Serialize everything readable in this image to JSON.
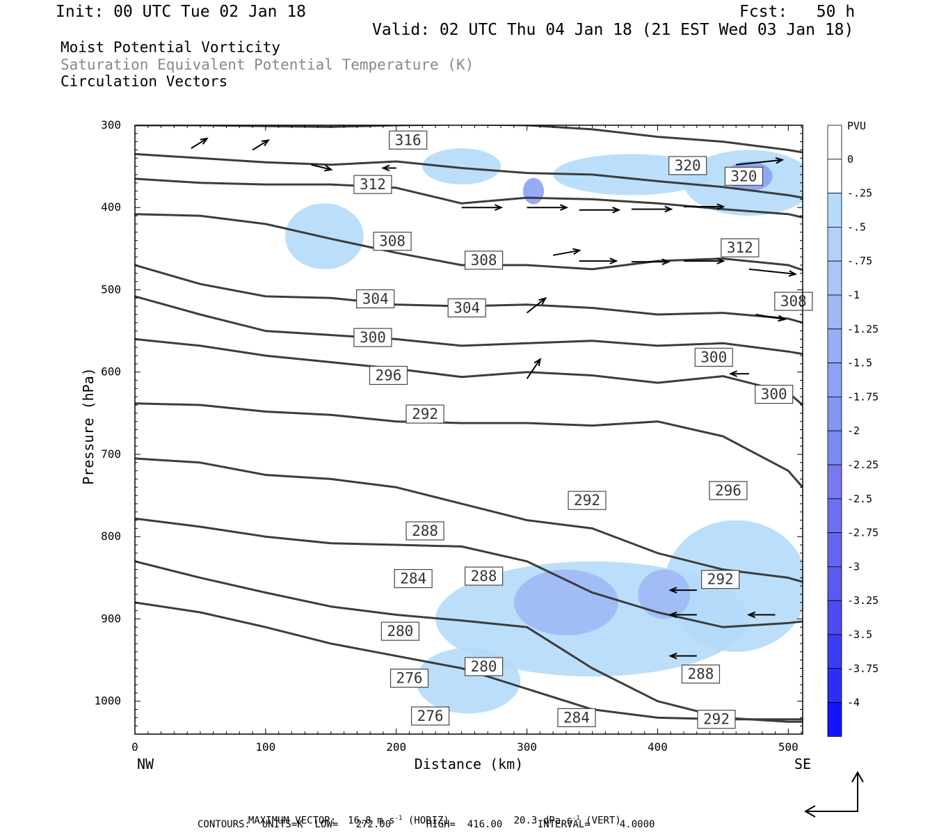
{
  "header": {
    "init": "Init: 00 UTC Tue 02 Jan 18",
    "fcst": "Fcst:   50 h",
    "valid": "Valid: 02 UTC Thu 04 Jan 18 (21 EST Wed 03 Jan 18)",
    "field1": "Moist Potential Vorticity",
    "field2": "Saturation Equivalent Potential Temperature (K)",
    "field3": "Circulation Vectors"
  },
  "footer": {
    "max_vector_a": "MAXIMUM VECTOR:  16.8 m s",
    "max_vector_b": "(HORIZ)",
    "max_vector_c": "20.3 dPa s",
    "max_vector_d": "(VERT)",
    "exp": "-1",
    "contours": "CONTOURS:  UNITS=K  LOW=   272.00      HIGH=  416.00      INTERVAL=     4.0000"
  },
  "colors": {
    "contour": "#3c3c3c",
    "shade_light": "#b4dcfa",
    "shade_mid": "#a0b9f5",
    "shade_dark": "#7878f0"
  },
  "chart_data": {
    "type": "cross-section",
    "xlabel": "Distance (km)",
    "ylabel": "Pressure (hPa)",
    "x_ticks": [
      0,
      100,
      200,
      300,
      400,
      500
    ],
    "y_ticks": [
      300,
      400,
      500,
      600,
      700,
      800,
      900,
      1000
    ],
    "xlim": [
      0,
      511
    ],
    "ylim": [
      1040,
      300
    ],
    "x_end_labels": {
      "left": "NW",
      "right": "SE"
    },
    "colorbar": {
      "unit": "PVU",
      "labels": [
        "0",
        "-.25",
        "-.5",
        "-.75",
        "-1",
        "-1.25",
        "-1.5",
        "-1.75",
        "-2",
        "-2.25",
        "-2.5",
        "-2.75",
        "-3",
        "-3.25",
        "-3.5",
        "-3.75",
        "-4"
      ],
      "colors": [
        "#ffffff",
        "#b4dcfa",
        "#b4cff8",
        "#aac6f6",
        "#a0b9f5",
        "#96aef4",
        "#8ca2f3",
        "#8296f2",
        "#7d8af1",
        "#7878f0",
        "#6e6ef0",
        "#6464f0",
        "#5a5af0",
        "#4b4bf2",
        "#3c3cf4",
        "#2d2df6",
        "#1414f8"
      ]
    },
    "theta_labels": [
      {
        "text": "316",
        "x": 209,
        "p": 318
      },
      {
        "text": "312",
        "x": 182,
        "p": 372
      },
      {
        "text": "308",
        "x": 197,
        "p": 441
      },
      {
        "text": "308",
        "x": 267,
        "p": 464
      },
      {
        "text": "304",
        "x": 184,
        "p": 511
      },
      {
        "text": "304",
        "x": 254,
        "p": 522
      },
      {
        "text": "300",
        "x": 182,
        "p": 558
      },
      {
        "text": "296",
        "x": 194,
        "p": 604
      },
      {
        "text": "292",
        "x": 222,
        "p": 651
      },
      {
        "text": "320",
        "x": 423,
        "p": 349
      },
      {
        "text": "320",
        "x": 466,
        "p": 362
      },
      {
        "text": "312",
        "x": 463,
        "p": 449
      },
      {
        "text": "308",
        "x": 504,
        "p": 514
      },
      {
        "text": "300",
        "x": 443,
        "p": 582
      },
      {
        "text": "300",
        "x": 489,
        "p": 627
      },
      {
        "text": "296",
        "x": 454,
        "p": 744
      },
      {
        "text": "292",
        "x": 346,
        "p": 756
      },
      {
        "text": "288",
        "x": 222,
        "p": 793
      },
      {
        "text": "288",
        "x": 267,
        "p": 848
      },
      {
        "text": "284",
        "x": 213,
        "p": 851
      },
      {
        "text": "292",
        "x": 448,
        "p": 852
      },
      {
        "text": "280",
        "x": 203,
        "p": 915
      },
      {
        "text": "280",
        "x": 267,
        "p": 958
      },
      {
        "text": "288",
        "x": 433,
        "p": 967
      },
      {
        "text": "276",
        "x": 210,
        "p": 972
      },
      {
        "text": "276",
        "x": 226,
        "p": 1018
      },
      {
        "text": "284",
        "x": 338,
        "p": 1020
      },
      {
        "text": "292",
        "x": 445,
        "p": 1022
      }
    ],
    "theta_lines": [
      {
        "x": [
          0,
          50,
          100,
          150,
          200,
          250,
          300,
          350,
          400,
          450,
          500,
          511
        ],
        "p": [
          300,
          300,
          301,
          302,
          300,
          299,
          300,
          305,
          314,
          320,
          330,
          333
        ]
      },
      {
        "x": [
          0,
          50,
          100,
          150,
          200,
          250,
          300,
          350,
          400,
          450,
          500,
          511
        ],
        "p": [
          335,
          340,
          345,
          348,
          344,
          352,
          358,
          360,
          368,
          375,
          385,
          388
        ]
      },
      {
        "x": [
          0,
          50,
          100,
          150,
          200,
          250,
          300,
          350,
          400,
          450,
          500,
          511
        ],
        "p": [
          365,
          370,
          372,
          372,
          376,
          395,
          388,
          390,
          395,
          402,
          408,
          412
        ]
      },
      {
        "x": [
          0,
          50,
          100,
          150,
          200,
          250,
          300,
          350,
          400,
          450,
          500,
          511
        ],
        "p": [
          408,
          410,
          420,
          438,
          455,
          470,
          470,
          475,
          465,
          462,
          470,
          476
        ]
      },
      {
        "x": [
          0,
          50,
          100,
          150,
          200,
          250,
          300,
          350,
          400,
          450,
          500,
          511
        ],
        "p": [
          470,
          493,
          508,
          510,
          518,
          520,
          518,
          522,
          530,
          528,
          535,
          540
        ]
      },
      {
        "x": [
          0,
          50,
          100,
          150,
          200,
          250,
          300,
          350,
          400,
          450,
          500,
          511
        ],
        "p": [
          508,
          530,
          550,
          555,
          560,
          568,
          565,
          562,
          568,
          565,
          575,
          578
        ]
      },
      {
        "x": [
          0,
          50,
          100,
          150,
          200,
          250,
          300,
          350,
          400,
          450,
          500,
          511
        ],
        "p": [
          560,
          568,
          580,
          588,
          596,
          606,
          600,
          604,
          613,
          605,
          625,
          640
        ]
      },
      {
        "x": [
          0,
          50,
          100,
          150,
          200,
          250,
          300,
          350,
          400,
          450,
          500,
          511
        ],
        "p": [
          638,
          640,
          648,
          652,
          660,
          662,
          662,
          665,
          660,
          678,
          720,
          740
        ]
      },
      {
        "x": [
          0,
          50,
          100,
          150,
          200,
          250,
          300,
          350,
          400,
          450,
          500,
          511
        ],
        "p": [
          705,
          710,
          725,
          730,
          740,
          760,
          780,
          790,
          820,
          840,
          850,
          855
        ]
      },
      {
        "x": [
          0,
          50,
          100,
          150,
          200,
          250,
          300,
          350,
          400,
          450,
          500,
          511
        ],
        "p": [
          778,
          788,
          800,
          808,
          810,
          812,
          830,
          868,
          892,
          910,
          905,
          903
        ]
      },
      {
        "x": [
          0,
          50,
          100,
          150,
          200,
          250,
          300,
          350,
          400,
          450,
          500,
          511
        ],
        "p": [
          830,
          850,
          868,
          885,
          895,
          902,
          910,
          960,
          1000,
          1020,
          1025,
          1025
        ]
      },
      {
        "x": [
          0,
          50,
          100,
          150,
          200,
          250,
          300,
          350,
          400,
          450,
          500,
          511
        ],
        "p": [
          880,
          892,
          910,
          930,
          945,
          960,
          985,
          1010,
          1020,
          1022,
          1022,
          1022
        ]
      }
    ],
    "vectors": [
      {
        "x": 43,
        "p": 328,
        "u": 12,
        "w": 2
      },
      {
        "x": 90,
        "p": 330,
        "u": 12,
        "w": 2
      },
      {
        "x": 135,
        "p": 348,
        "u": 15,
        "w": -1
      },
      {
        "x": 200,
        "p": 352,
        "u": -10,
        "w": 0
      },
      {
        "x": 250,
        "p": 400,
        "u": 30,
        "w": 0
      },
      {
        "x": 300,
        "p": 400,
        "u": 30,
        "w": 0
      },
      {
        "x": 340,
        "p": 403,
        "u": 30,
        "w": 0
      },
      {
        "x": 380,
        "p": 402,
        "u": 30,
        "w": 0
      },
      {
        "x": 420,
        "p": 399,
        "u": 30,
        "w": 0
      },
      {
        "x": 320,
        "p": 458,
        "u": 20,
        "w": 1
      },
      {
        "x": 340,
        "p": 465,
        "u": 28,
        "w": 0
      },
      {
        "x": 380,
        "p": 466,
        "u": 28,
        "w": 0
      },
      {
        "x": 420,
        "p": 465,
        "u": 30,
        "w": 0
      },
      {
        "x": 470,
        "p": 475,
        "u": 35,
        "w": -1
      },
      {
        "x": 475,
        "p": 530,
        "u": 22,
        "w": -1
      },
      {
        "x": 460,
        "p": 348,
        "u": 35,
        "w": 1
      },
      {
        "x": 300,
        "p": 528,
        "u": 14,
        "w": 3
      },
      {
        "x": 300,
        "p": 608,
        "u": 10,
        "w": 4
      },
      {
        "x": 470,
        "p": 602,
        "u": -14,
        "w": 0
      },
      {
        "x": 430,
        "p": 865,
        "u": -20,
        "w": 0
      },
      {
        "x": 430,
        "p": 895,
        "u": -20,
        "w": 0
      },
      {
        "x": 430,
        "p": 945,
        "u": -20,
        "w": 0
      },
      {
        "x": 490,
        "p": 895,
        "u": -20,
        "w": 0
      }
    ],
    "pv_regions": [
      {
        "level": 1,
        "cx": 350,
        "cp": 900,
        "rx": 120,
        "rp": 70
      },
      {
        "level": 1,
        "cx": 460,
        "cp": 860,
        "rx": 55,
        "rp": 80
      },
      {
        "level": 1,
        "cx": 470,
        "cp": 370,
        "rx": 50,
        "rp": 40
      },
      {
        "level": 1,
        "cx": 380,
        "cp": 360,
        "rx": 60,
        "rp": 25
      },
      {
        "level": 1,
        "cx": 250,
        "cp": 350,
        "rx": 30,
        "rp": 22
      },
      {
        "level": 1,
        "cx": 145,
        "cp": 435,
        "rx": 30,
        "rp": 40
      },
      {
        "level": 1,
        "cx": 255,
        "cp": 975,
        "rx": 40,
        "rp": 40
      },
      {
        "level": 4,
        "cx": 330,
        "cp": 880,
        "rx": 40,
        "rp": 40
      },
      {
        "level": 4,
        "cx": 405,
        "cp": 870,
        "rx": 20,
        "rp": 30
      },
      {
        "level": 6,
        "cx": 470,
        "cp": 362,
        "rx": 18,
        "rp": 18
      },
      {
        "level": 6,
        "cx": 305,
        "cp": 380,
        "rx": 8,
        "rp": 16
      }
    ]
  }
}
